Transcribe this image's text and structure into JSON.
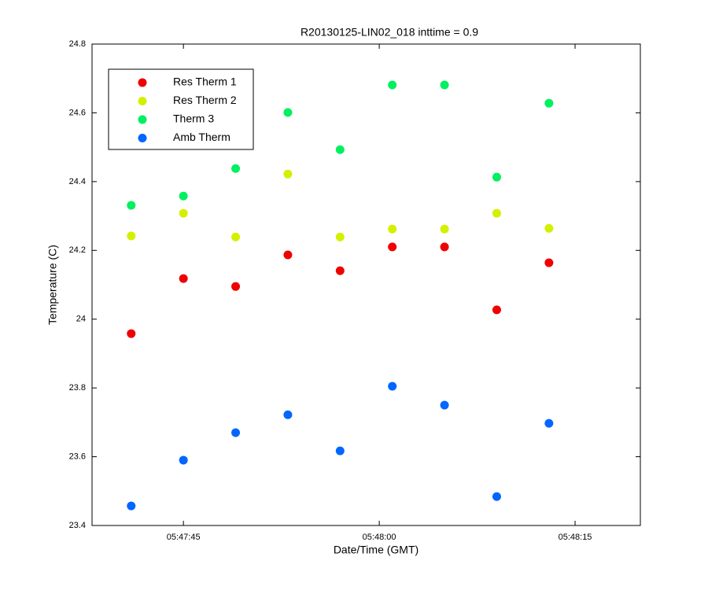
{
  "chart_data": {
    "type": "scatter",
    "title": "R20130125-LIN02_018 inttime = 0.9",
    "x_label": "Date/Time (GMT)",
    "y_label": "Temperature (C)",
    "x": [
      "05:47:41",
      "05:47:45",
      "05:47:49",
      "05:47:53",
      "05:47:57",
      "05:48:01",
      "05:48:05",
      "05:48:09",
      "05:48:13"
    ],
    "series": [
      {
        "name": "Res Therm 1",
        "color": "#f00000",
        "values": [
          23.958,
          24.118,
          24.095,
          24.187,
          24.141,
          24.21,
          24.21,
          24.027,
          24.164
        ]
      },
      {
        "name": "Res Therm 2",
        "color": "#d4f000",
        "values": [
          24.242,
          24.308,
          24.239,
          24.422,
          24.239,
          24.262,
          24.262,
          24.308,
          24.264
        ]
      },
      {
        "name": "Therm 3",
        "color": "#00f060",
        "values": [
          24.331,
          24.358,
          24.438,
          24.601,
          24.493,
          24.681,
          24.681,
          24.413,
          24.628
        ]
      },
      {
        "name": "Amb Therm",
        "color": "#0066ff",
        "values": [
          23.457,
          23.59,
          23.67,
          23.722,
          23.617,
          23.805,
          23.75,
          23.484,
          23.697
        ]
      }
    ],
    "xlim": [
      "05:47:38",
      "05:48:20"
    ],
    "xticks": [
      "05:47:45",
      "05:48:00",
      "05:48:15"
    ],
    "ylim": [
      23.4,
      24.8
    ],
    "yticks": [
      23.4,
      23.6,
      23.8,
      24,
      24.2,
      24.4,
      24.6,
      24.8
    ],
    "legend": "upper-left"
  }
}
